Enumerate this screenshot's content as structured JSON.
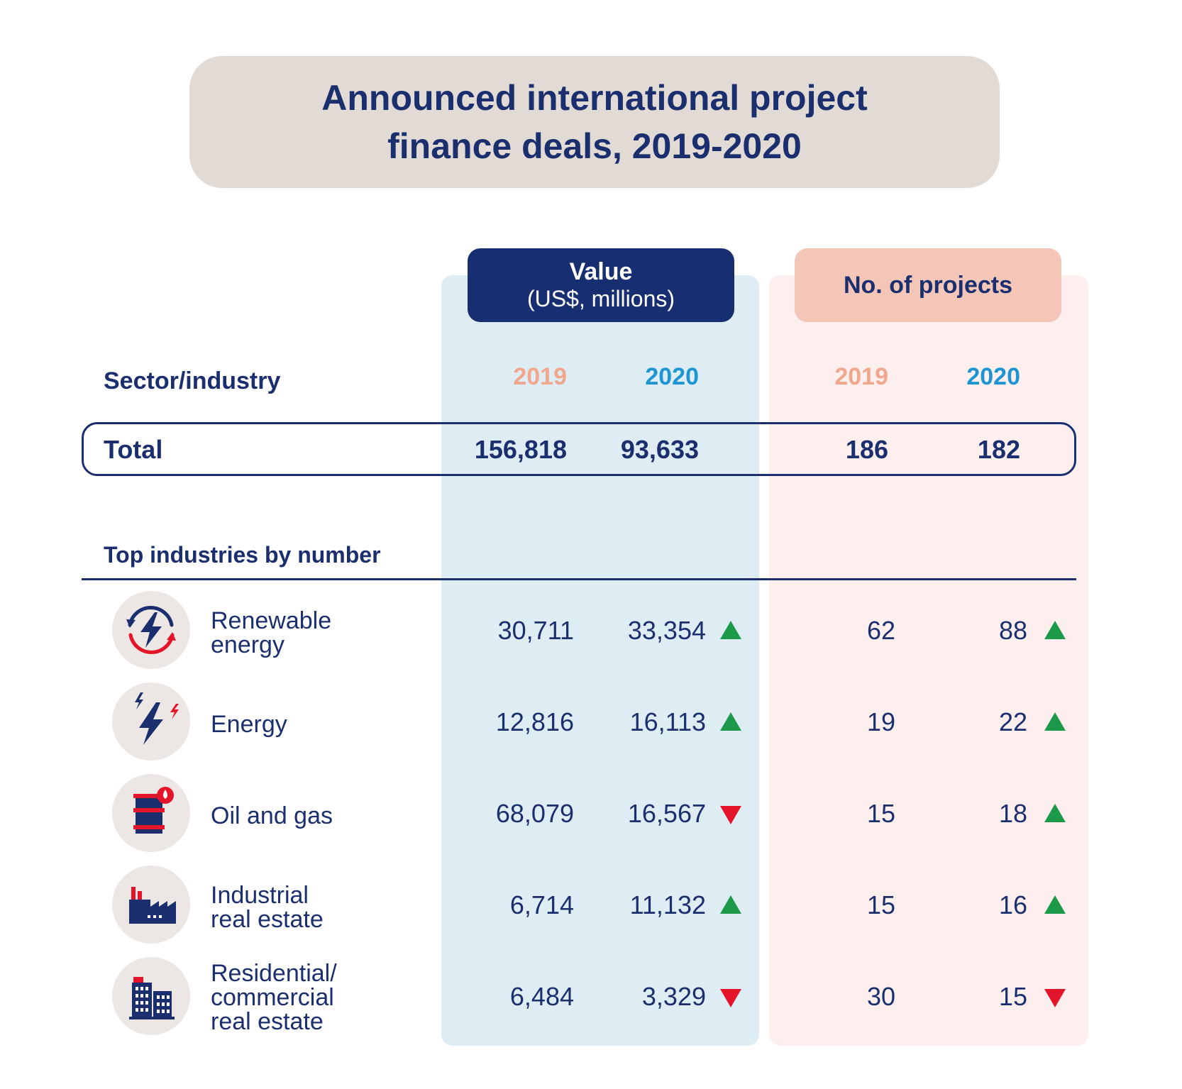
{
  "title": {
    "line1": "Announced international project",
    "line2": "finance deals, 2019-2020"
  },
  "headers": {
    "value_title": "Value",
    "value_subtitle": "(US$, millions)",
    "projects_title": "No. of projects",
    "sector_label": "Sector/industry",
    "year_2019": "2019",
    "year_2020": "2020"
  },
  "total": {
    "label": "Total",
    "value_2019": "156,818",
    "value_2020": "93,633",
    "projects_2019": "186",
    "projects_2020": "182"
  },
  "top_label": "Top industries by number",
  "colors": {
    "navy": "#1b2f6e",
    "year_2019": "#f1a78d",
    "year_2020": "#1e95d1",
    "up": "#1d9a49",
    "down": "#e4142b",
    "value_column_bg": "#deedf4",
    "projects_column_bg": "#fcefee"
  },
  "chart_data": {
    "type": "table",
    "columns": [
      "Sector/industry",
      "Value 2019",
      "Value 2020",
      "Projects 2019",
      "Projects 2020"
    ],
    "rows": [
      {
        "label_lines": [
          "Renewable",
          "energy"
        ],
        "icon": "renewable-energy-icon",
        "value_2019": "30,711",
        "value_2020": "33,354",
        "value_trend": "up",
        "projects_2019": "62",
        "projects_2020": "88",
        "projects_trend": "up"
      },
      {
        "label_lines": [
          "Energy"
        ],
        "icon": "energy-lightning-icon",
        "value_2019": "12,816",
        "value_2020": "16,113",
        "value_trend": "up",
        "projects_2019": "19",
        "projects_2020": "22",
        "projects_trend": "up"
      },
      {
        "label_lines": [
          "Oil and gas"
        ],
        "icon": "oil-barrel-icon",
        "value_2019": "68,079",
        "value_2020": "16,567",
        "value_trend": "down",
        "projects_2019": "15",
        "projects_2020": "18",
        "projects_trend": "up"
      },
      {
        "label_lines": [
          "Industrial",
          "real estate"
        ],
        "icon": "factory-icon",
        "value_2019": "6,714",
        "value_2020": "11,132",
        "value_trend": "up",
        "projects_2019": "15",
        "projects_2020": "16",
        "projects_trend": "up"
      },
      {
        "label_lines": [
          "Residential/",
          "commercial",
          "real estate"
        ],
        "icon": "building-icon",
        "value_2019": "6,484",
        "value_2020": "3,329",
        "value_trend": "down",
        "projects_2019": "30",
        "projects_2020": "15",
        "projects_trend": "down"
      }
    ]
  }
}
